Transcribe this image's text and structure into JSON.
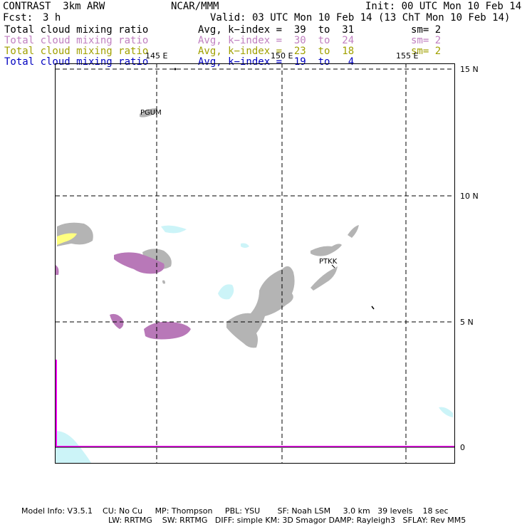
{
  "header": {
    "model": "CONTRAST  3km ARW",
    "org": "NCAR/MMM",
    "init": "Init: 00 UTC Mon 10 Feb 14",
    "fcst_label": "Fcst:",
    "fcst_value": "3 h",
    "valid": "Valid: 03 UTC Mon 10 Feb 14 (13 ChT Mon 10 Feb 14)"
  },
  "legend": [
    {
      "field": "Total cloud mixing ratio",
      "avg": "Avg, k−index =  39  to  31",
      "sm": "sm= 2",
      "color": "#000000"
    },
    {
      "field": "Total cloud mixing ratio",
      "avg": "Avg, k−index =  30  to  24",
      "sm": "sm= 2",
      "color": "#c080c0"
    },
    {
      "field": "Total cloud mixing ratio",
      "avg": "Avg, k−index =  23  to  18",
      "sm": "sm= 2",
      "color": "#a0a000"
    },
    {
      "field": "Total cloud mixing ratio",
      "avg": "Avg, k−index =  19  to   4",
      "sm": "",
      "color": "#0000c0"
    }
  ],
  "map": {
    "lon_labels": [
      "145 E",
      "150 E",
      "155 E"
    ],
    "lat_labels": [
      "15 N",
      "10 N",
      "5 N",
      "0"
    ],
    "stations": [
      "PGUM",
      "PTKK"
    ],
    "colors": {
      "low_cloud": "#b4b4b4",
      "mid_cloud": "#b878b8",
      "high_cloud": "#ffff80",
      "light_cloud": "#ccf4f8",
      "boundary": "#ff00ff"
    }
  },
  "footer": {
    "line1": "Model Info: V3.5.1    CU: No Cu     MP: Thompson     PBL: YSU       SF: Noah LSM     3.0 km   39 levels    18 sec",
    "line2": "LW: RRTMG    SW: RRTMG   DIFF: simple KM: 3D Smagor DAMP: Rayleigh3   SFLAY: Rev MM5"
  }
}
